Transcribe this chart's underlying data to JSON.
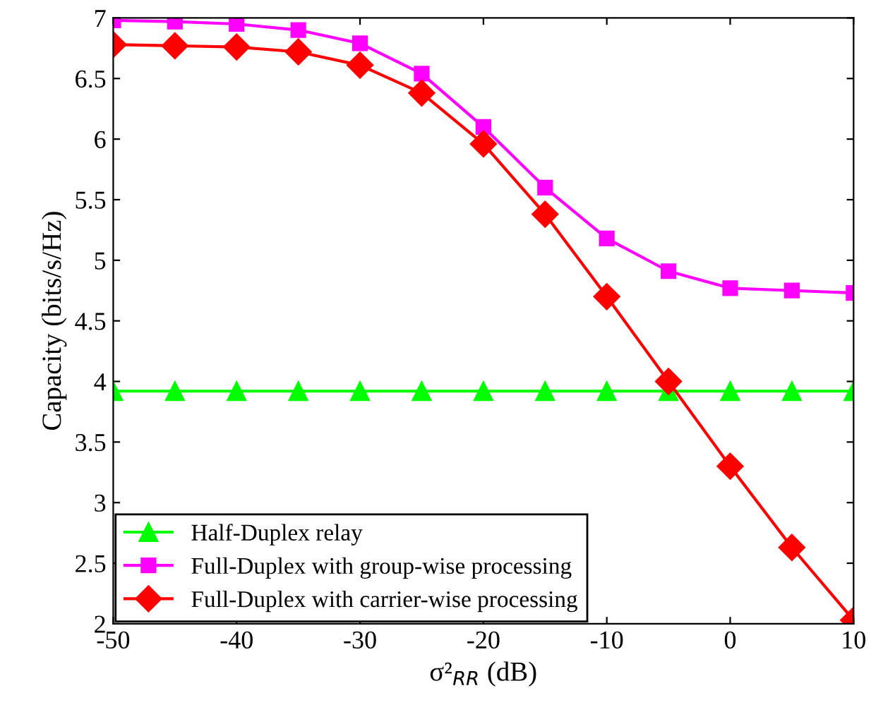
{
  "chart_data": {
    "type": "line",
    "xlabel": "σ²$_{RR}$ (dB)",
    "ylabel": "Capacity (bits/s/Hz)",
    "x": [
      -50,
      -45,
      -40,
      -35,
      -30,
      -25,
      -20,
      -15,
      -10,
      -5,
      0,
      5,
      10
    ],
    "xlim": [
      -50,
      10
    ],
    "xticks": [
      -50,
      -40,
      -30,
      -20,
      -10,
      0,
      10
    ],
    "ylim": [
      2,
      7
    ],
    "yticks": [
      2,
      2.5,
      3,
      3.5,
      4,
      4.5,
      5,
      5.5,
      6,
      6.5,
      7
    ],
    "grid": false,
    "legend": "bottom left",
    "line_style": "solid",
    "series": [
      {
        "name": "Half-Duplex relay",
        "color": "#00ff00",
        "marker": "triangle",
        "values": [
          3.92,
          3.92,
          3.92,
          3.92,
          3.92,
          3.92,
          3.92,
          3.92,
          3.92,
          3.92,
          3.92,
          3.92,
          3.92
        ]
      },
      {
        "name": "Full-Duplex with group-wise processing",
        "color": "#ff00ff",
        "marker": "square",
        "values": [
          6.98,
          6.97,
          6.95,
          6.9,
          6.79,
          6.54,
          6.1,
          5.6,
          5.18,
          4.91,
          4.77,
          4.75,
          4.73
        ]
      },
      {
        "name": "Full-Duplex with carrier-wise processing",
        "color": "#ff0000",
        "marker": "diamond",
        "values": [
          6.78,
          6.77,
          6.76,
          6.72,
          6.61,
          6.38,
          5.96,
          5.38,
          4.7,
          4.0,
          3.3,
          2.63,
          2.03
        ]
      }
    ]
  }
}
